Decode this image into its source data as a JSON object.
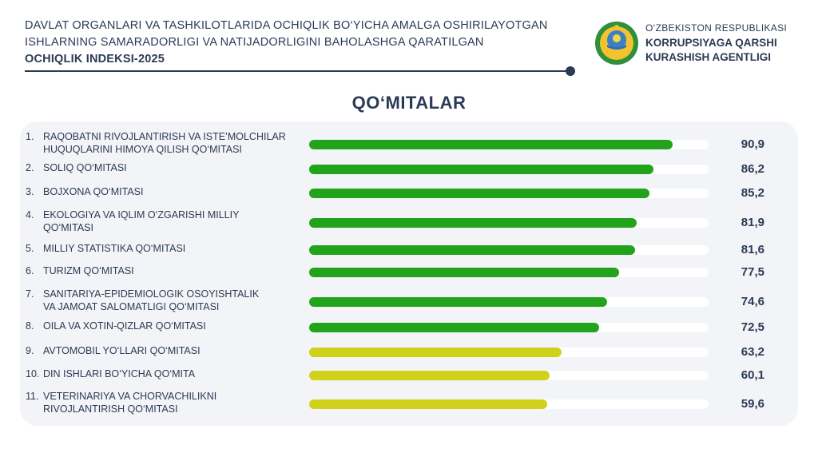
{
  "header": {
    "line1": "DAVLAT ORGANLARI VA TASHKILOTLARIDA OCHIQLIK BO‘YICHA AMALGA OSHIRILAYOTGAN",
    "line2": "ISHLARNING SAMARADORLIGI VA NATIJADORLIGINI BAHOLASHGA QARATILGAN",
    "line3": "OCHIQLIK INDEKSI-2025"
  },
  "agency": {
    "line1": "O‘ZBEKISTON RESPUBLIKASI",
    "line2": "KORRUPSIYAGA QARSHI",
    "line3": "KURASHISH AGENTLIGI",
    "emblem_icon": "state-emblem-icon"
  },
  "section_title": "QO‘MITALAR",
  "colors": {
    "high": "#21a31b",
    "medium": "#cfd11a",
    "track": "#ffffff",
    "text": "#2b3a55"
  },
  "chart_data": {
    "type": "bar",
    "orientation": "horizontal",
    "xlim": [
      0,
      100
    ],
    "categories": [
      {
        "num": "1.",
        "lines": [
          "RAQOBATNI RIVOJLANTIRISH VA ISTE’MOLCHILAR",
          "HUQUQLARINI HIMOYA QILISH QO‘MITASI"
        ]
      },
      {
        "num": "2.",
        "lines": [
          "SOLIQ QO‘MITASI"
        ]
      },
      {
        "num": "3.",
        "lines": [
          "BOJXONA QO‘MITASI"
        ]
      },
      {
        "num": "4.",
        "lines": [
          "EKOLOGIYA VA IQLIM O‘ZGARISHI MILLIY",
          "QO‘MITASI"
        ]
      },
      {
        "num": "5.",
        "lines": [
          "MILLIY STATISTIKA QO‘MITASI"
        ]
      },
      {
        "num": "6.",
        "lines": [
          "TURIZM QO‘MITASI"
        ]
      },
      {
        "num": "7.",
        "lines": [
          "SANITARIYA-EPIDEMIOLOGIK OSOYISHTALIK",
          "VA JAMOAT SALOMATLIGI QO‘MITASI"
        ]
      },
      {
        "num": "8.",
        "lines": [
          "OILA VA XOTIN-QIZLAR QO‘MITASI"
        ]
      },
      {
        "num": "9.",
        "lines": [
          "AVTOMOBIL YO‘LLARI QO‘MITASI"
        ]
      },
      {
        "num": "10.",
        "lines": [
          "DIN ISHLARI BO‘YICHA QO‘MITA"
        ]
      },
      {
        "num": "11.",
        "lines": [
          "VETERINARIYA VA CHORVACHILIKNI",
          "RIVOJLANTIRISH QO‘MITASI"
        ]
      }
    ],
    "values": [
      90.9,
      86.2,
      85.2,
      81.9,
      81.6,
      77.5,
      74.6,
      72.5,
      63.2,
      60.1,
      59.6
    ],
    "value_labels": [
      "90,9",
      "86,2",
      "85,2",
      "81,9",
      "81,6",
      "77,5",
      "74,6",
      "72,5",
      "63,2",
      "60,1",
      "59,6"
    ],
    "bar_color_keys": [
      "high",
      "high",
      "high",
      "high",
      "high",
      "high",
      "high",
      "high",
      "medium",
      "medium",
      "medium"
    ]
  }
}
